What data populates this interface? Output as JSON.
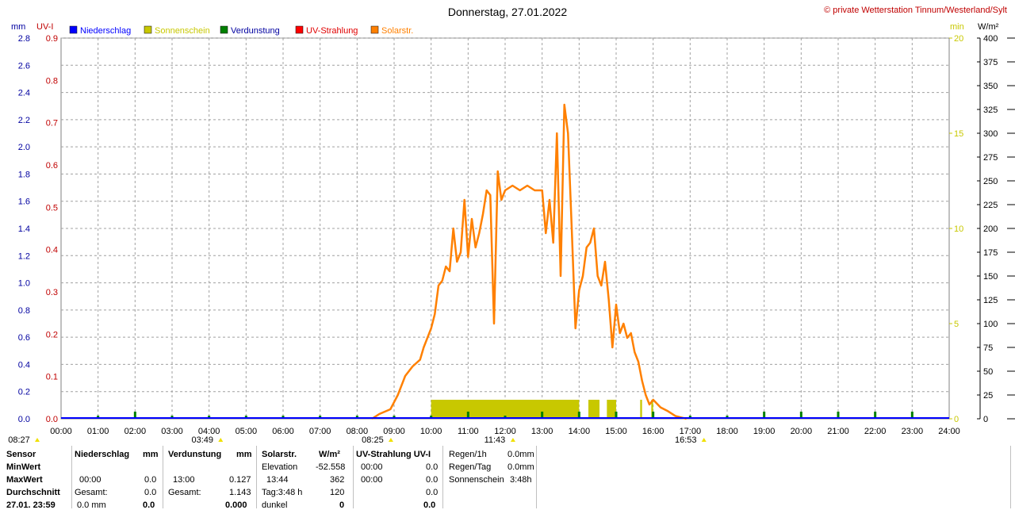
{
  "title": "Donnerstag, 27.01.2022",
  "copyright": "© private Wetterstation Tinnum/Westerland/Sylt",
  "unit_labels": {
    "mm": "mm",
    "uvi": "UV-I",
    "min": "min",
    "wm2": "W/m²"
  },
  "legend": [
    {
      "name": "Niederschlag",
      "color": "#0000ff",
      "text_color": "#0000ff"
    },
    {
      "name": "Sonnenschein",
      "color": "#c8c800",
      "text_color": "#c8c800"
    },
    {
      "name": "Verdunstung",
      "color": "#008000",
      "text_color": "#0000a0"
    },
    {
      "name": "UV-Strahlung",
      "color": "#ff0000",
      "text_color": "#e00000"
    },
    {
      "name": "Solarstr.",
      "color": "#ff8000",
      "text_color": "#ff8000"
    }
  ],
  "colors": {
    "mm_axis": "#0000a0",
    "uvi_axis": "#c00000",
    "min_axis": "#c8c800",
    "wm2_axis": "#000000",
    "solar": "#ff8000",
    "sunshine": "#c8c800",
    "evap": "#008000"
  },
  "chart_data": {
    "type": "line",
    "x_range": [
      "00:00",
      "24:00"
    ],
    "x_ticks": [
      "00:00",
      "01:00",
      "02:00",
      "03:00",
      "04:00",
      "05:00",
      "06:00",
      "07:00",
      "08:00",
      "09:00",
      "10:00",
      "11:00",
      "12:00",
      "13:00",
      "14:00",
      "15:00",
      "16:00",
      "17:00",
      "18:00",
      "19:00",
      "20:00",
      "21:00",
      "22:00",
      "23:00",
      "24:00"
    ],
    "axes": {
      "mm": {
        "ticks": [
          "0.0",
          "0.2",
          "0.4",
          "0.6",
          "0.8",
          "1.0",
          "1.2",
          "1.4",
          "1.6",
          "1.8",
          "2.0",
          "2.2",
          "2.4",
          "2.6",
          "2.8"
        ],
        "range": [
          0,
          2.8
        ]
      },
      "uvi": {
        "ticks": [
          "0.0",
          "0.1",
          "0.2",
          "0.3",
          "0.4",
          "0.5",
          "0.6",
          "0.7",
          "0.8",
          "0.9"
        ],
        "range": [
          0,
          0.9
        ]
      },
      "min": {
        "ticks": [
          "0",
          "5",
          "10",
          "15",
          "20"
        ],
        "range": [
          0,
          20
        ]
      },
      "wm2": {
        "ticks": [
          "0",
          "25",
          "50",
          "75",
          "100",
          "125",
          "150",
          "175",
          "200",
          "225",
          "250",
          "275",
          "300",
          "325",
          "350",
          "375",
          "400"
        ],
        "range": [
          0,
          400
        ]
      }
    },
    "grid": true,
    "series": [
      {
        "name": "Solarstr.",
        "axis": "wm2",
        "hours": [
          8.4,
          8.6,
          8.9,
          9.1,
          9.3,
          9.5,
          9.7,
          9.8,
          9.9,
          10.0,
          10.1,
          10.2,
          10.3,
          10.4,
          10.5,
          10.6,
          10.7,
          10.8,
          10.9,
          11.0,
          11.1,
          11.2,
          11.3,
          11.4,
          11.5,
          11.6,
          11.7,
          11.8,
          11.9,
          12.0,
          12.2,
          12.4,
          12.6,
          12.8,
          13.0,
          13.1,
          13.2,
          13.3,
          13.4,
          13.5,
          13.6,
          13.7,
          13.8,
          13.9,
          14.0,
          14.1,
          14.2,
          14.3,
          14.4,
          14.5,
          14.6,
          14.7,
          14.8,
          14.9,
          15.0,
          15.1,
          15.2,
          15.3,
          15.4,
          15.5,
          15.6,
          15.7,
          15.8,
          15.9,
          16.0,
          16.2,
          16.4,
          16.6,
          16.8,
          16.9
        ],
        "values": [
          0,
          5,
          10,
          25,
          45,
          55,
          62,
          75,
          85,
          95,
          110,
          140,
          145,
          160,
          155,
          200,
          165,
          175,
          230,
          170,
          210,
          180,
          195,
          215,
          240,
          235,
          100,
          260,
          230,
          240,
          245,
          240,
          245,
          240,
          240,
          195,
          230,
          185,
          300,
          150,
          330,
          300,
          200,
          95,
          135,
          150,
          180,
          185,
          200,
          150,
          140,
          165,
          125,
          75,
          120,
          90,
          100,
          85,
          90,
          70,
          60,
          40,
          25,
          15,
          20,
          12,
          8,
          3,
          1,
          0
        ]
      },
      {
        "name": "UV-Strahlung",
        "axis": "uvi",
        "values_all": 0.0
      }
    ],
    "sunshine_bars": [
      [
        10.0,
        14.0
      ],
      [
        14.25,
        14.55
      ],
      [
        14.75,
        15.0
      ],
      [
        15.65,
        15.7
      ],
      [
        15.95,
        16.0
      ]
    ],
    "evap_marks": [
      1.0,
      2.0,
      3.0,
      4.0,
      5.0,
      6.0,
      7.0,
      8.0,
      9.0,
      10.0,
      11.0,
      12.0,
      13.0,
      14.0,
      15.0,
      16.0,
      17.0,
      18.0,
      19.0,
      20.0,
      21.0,
      22.0,
      23.0
    ],
    "evap_tall": [
      2.0,
      11.0,
      12.25,
      13.0,
      14.0,
      15.0,
      16.0,
      19.0,
      20.0,
      21.0,
      22.0,
      23.0
    ],
    "markers": [
      {
        "label": "08:27",
        "hour": 0.0
      },
      {
        "label": "03:49",
        "hour": 3.82
      },
      {
        "label": "08:25",
        "hour": 8.42
      },
      {
        "label": "11:43",
        "hour": 11.72
      },
      {
        "label": "16:53",
        "hour": 16.88
      }
    ]
  },
  "table": {
    "headers": {
      "sensor": "Sensor",
      "rain": "Niederschlag",
      "rain_unit": "mm",
      "evap": "Verdunstung",
      "evap_unit": "mm",
      "solar": "Solarstr.",
      "solar_unit": "W/m²",
      "uv": "UV-Strahlung UV-I"
    },
    "row_labels": [
      "MinWert",
      "MaxWert",
      "Durchschnitt",
      "27.01. 23:59"
    ],
    "rain": {
      "max_time": "00:00",
      "max_val": "0.0",
      "total_label": "Gesamt:",
      "total_val": "0.0",
      "last": "0.0 mm",
      "last_val": "0.0"
    },
    "evap": {
      "max_time": "13:00",
      "max_val": "0.127",
      "total_label": "Gesamt:",
      "total_val": "1.143",
      "last_val": "0.000"
    },
    "solar": {
      "elev_label": "Elevation",
      "elev_val": "-52.558",
      "max_time": "13:44",
      "max_val": "362",
      "day_label": "Tag:3:48 h",
      "day_val": "120",
      "dark_label": "dunkel",
      "dark_val": "0"
    },
    "uv": {
      "min_time": "00:00",
      "min_val": "0.0",
      "max_time": "00:00",
      "max_val": "0.0",
      "avg_val": "0.0",
      "last_val": "0.0"
    },
    "summary": [
      {
        "label": "Regen/1h",
        "value": "0.0mm"
      },
      {
        "label": "Regen/Tag",
        "value": "0.0mm"
      },
      {
        "label": "Sonnenschein",
        "value": "3:48h"
      }
    ]
  }
}
